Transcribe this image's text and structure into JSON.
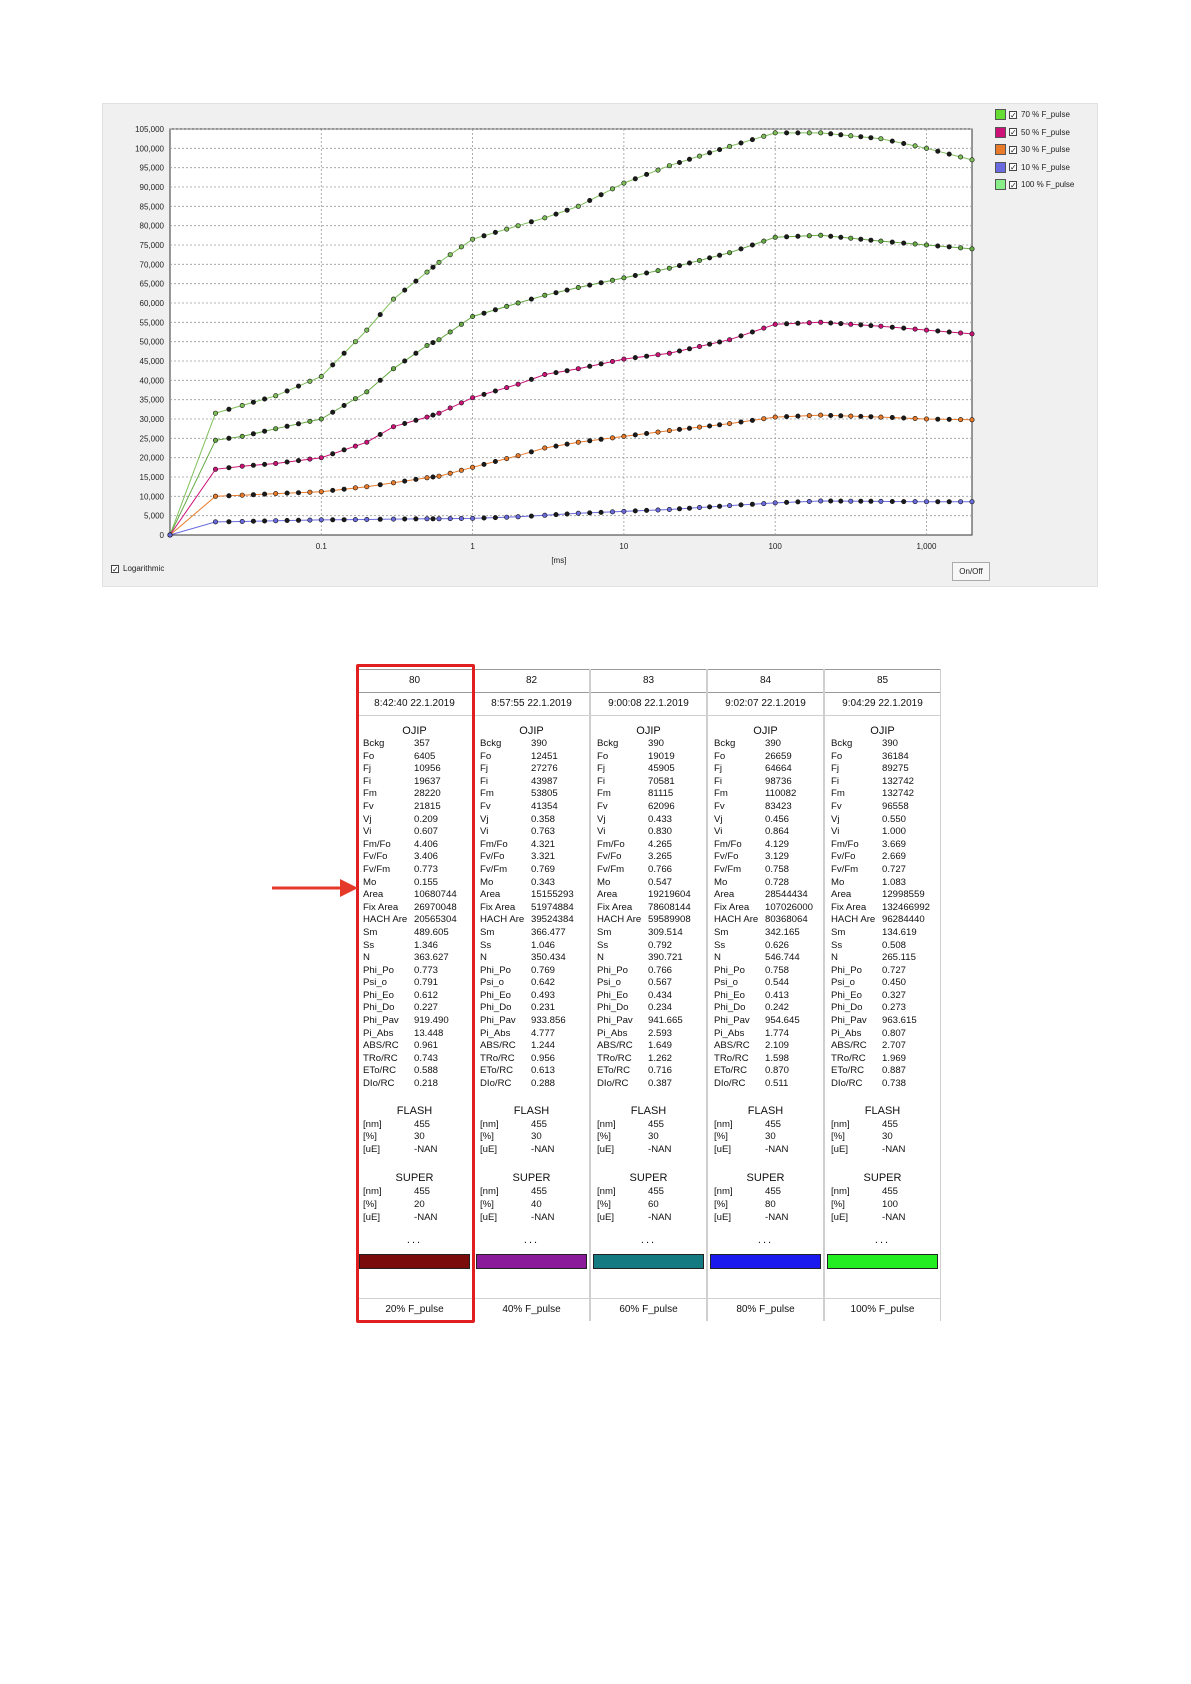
{
  "chart": {
    "xlabel": "[ms]",
    "y_ticks": [
      "0",
      "5,000",
      "10,000",
      "15,000",
      "20,000",
      "25,000",
      "30,000",
      "35,000",
      "40,000",
      "45,000",
      "50,000",
      "55,000",
      "60,000",
      "65,000",
      "70,000",
      "75,000",
      "80,000",
      "85,000",
      "90,000",
      "95,000",
      "100,000",
      "105,000"
    ],
    "x_ticks": [
      "0.1",
      "1",
      "10",
      "100",
      "1,000"
    ],
    "log_label": "Logarithmic",
    "log_checked": true,
    "onoff_label": "On/Off",
    "legend": [
      {
        "label": "70 % F_pulse",
        "color": "#66dd33"
      },
      {
        "label": "50 % F_pulse",
        "color": "#cc1177"
      },
      {
        "label": "30 % F_pulse",
        "color": "#e87a2a"
      },
      {
        "label": "10 % F_pulse",
        "color": "#6a6adf"
      },
      {
        "label": "100 % F_pulse",
        "color": "#88ee88"
      }
    ]
  },
  "chart_data": {
    "type": "scatter",
    "x_scale": "log",
    "xlabel": "[ms]",
    "xlim": [
      0.01,
      2000
    ],
    "ylim": [
      0,
      105000
    ],
    "grid": true,
    "legend_position": "right",
    "series": [
      {
        "name": "100 % F_pulse",
        "color": "#7fbf5a",
        "x": [
          0.01,
          0.02,
          0.03,
          0.05,
          0.1,
          0.2,
          0.3,
          0.5,
          0.6,
          1,
          2,
          3,
          5,
          10,
          20,
          50,
          100,
          200,
          500,
          1000,
          2000
        ],
        "y": [
          0,
          31500,
          33500,
          36000,
          41000,
          53000,
          61000,
          68000,
          70500,
          76500,
          80000,
          82000,
          85000,
          91000,
          95500,
          100500,
          104000,
          104000,
          102500,
          100000,
          97000
        ]
      },
      {
        "name": "70 % F_pulse",
        "color": "#66aa44",
        "x": [
          0.01,
          0.02,
          0.03,
          0.05,
          0.1,
          0.2,
          0.3,
          0.5,
          0.6,
          1,
          2,
          3,
          5,
          10,
          20,
          50,
          100,
          200,
          500,
          1000,
          2000
        ],
        "y": [
          0,
          24500,
          25500,
          27500,
          30000,
          37000,
          43000,
          49000,
          50500,
          56500,
          60000,
          62000,
          64000,
          66500,
          69000,
          73000,
          77000,
          77500,
          76000,
          75000,
          74000
        ]
      },
      {
        "name": "50 % F_pulse",
        "color": "#cc1177",
        "x": [
          0.01,
          0.02,
          0.03,
          0.05,
          0.1,
          0.2,
          0.3,
          0.5,
          0.6,
          1,
          2,
          3,
          5,
          10,
          20,
          50,
          100,
          200,
          500,
          1000,
          2000
        ],
        "y": [
          0,
          17000,
          17800,
          18500,
          20000,
          24000,
          28000,
          30500,
          31500,
          35500,
          39000,
          41500,
          43000,
          45500,
          47000,
          50500,
          54500,
          55000,
          54000,
          53000,
          52000
        ]
      },
      {
        "name": "30 % F_pulse",
        "color": "#e87a2a",
        "x": [
          0.01,
          0.02,
          0.03,
          0.05,
          0.1,
          0.2,
          0.3,
          0.5,
          0.6,
          1,
          2,
          3,
          5,
          10,
          20,
          50,
          100,
          200,
          500,
          1000,
          2000
        ],
        "y": [
          0,
          10000,
          10300,
          10700,
          11200,
          12500,
          13500,
          14800,
          15200,
          17500,
          20500,
          22500,
          24000,
          25500,
          27000,
          28800,
          30500,
          31000,
          30500,
          30000,
          29800
        ]
      },
      {
        "name": "10 % F_pulse",
        "color": "#6a6adf",
        "x": [
          0.01,
          0.02,
          0.03,
          0.05,
          0.1,
          0.2,
          0.3,
          0.5,
          0.6,
          1,
          2,
          3,
          5,
          10,
          20,
          50,
          100,
          200,
          500,
          1000,
          2000
        ],
        "y": [
          0,
          3400,
          3500,
          3700,
          3900,
          4000,
          4100,
          4200,
          4200,
          4300,
          4700,
          5100,
          5600,
          6100,
          6600,
          7600,
          8300,
          8800,
          8700,
          8600,
          8600
        ]
      }
    ]
  },
  "table": {
    "params": [
      "Bckg",
      "Fo",
      "Fj",
      "Fi",
      "Fm",
      "Fv",
      "Vj",
      "Vi",
      "Fm/Fo",
      "Fv/Fo",
      "Fv/Fm",
      "Mo",
      "Area",
      "Fix Area",
      "HACH Are",
      "Sm",
      "Ss",
      "N",
      "Phi_Po",
      "Psi_o",
      "Phi_Eo",
      "Phi_Do",
      "Phi_Pav",
      "Pi_Abs",
      "ABS/RC",
      "TRo/RC",
      "ETo/RC",
      "DIo/RC"
    ],
    "ojip_title": "OJIP",
    "flash_title": "FLASH",
    "super_title": "SUPER",
    "flash_params": [
      "[nm]",
      "[%]",
      "[uE]"
    ],
    "ellipsis": "...",
    "columns": [
      {
        "id": "80",
        "time": "8:42:40  22.1.2019",
        "values": [
          "357",
          "6405",
          "10956",
          "19637",
          "28220",
          "21815",
          "0.209",
          "0.607",
          "4.406",
          "3.406",
          "0.773",
          "0.155",
          "10680744",
          "26970048",
          "20565304",
          "489.605",
          "1.346",
          "363.627",
          "0.773",
          "0.791",
          "0.612",
          "0.227",
          "919.490",
          "13.448",
          "0.961",
          "0.743",
          "0.588",
          "0.218"
        ],
        "flash": [
          "455",
          "30",
          "-NAN"
        ],
        "super": [
          "455",
          "20",
          "-NAN"
        ],
        "color": "#7a0c0c",
        "pulse": "20% F_pulse"
      },
      {
        "id": "82",
        "time": "8:57:55  22.1.2019",
        "values": [
          "390",
          "12451",
          "27276",
          "43987",
          "53805",
          "41354",
          "0.358",
          "0.763",
          "4.321",
          "3.321",
          "0.769",
          "0.343",
          "15155293",
          "51974884",
          "39524384",
          "366.477",
          "1.046",
          "350.434",
          "0.769",
          "0.642",
          "0.493",
          "0.231",
          "933.856",
          "4.777",
          "1.244",
          "0.956",
          "0.613",
          "0.288"
        ],
        "flash": [
          "455",
          "30",
          "-NAN"
        ],
        "super": [
          "455",
          "40",
          "-NAN"
        ],
        "color": "#8b1a9a",
        "pulse": "40% F_pulse"
      },
      {
        "id": "83",
        "time": "9:00:08  22.1.2019",
        "values": [
          "390",
          "19019",
          "45905",
          "70581",
          "81115",
          "62096",
          "0.433",
          "0.830",
          "4.265",
          "3.265",
          "0.766",
          "0.547",
          "19219604",
          "78608144",
          "59589908",
          "309.514",
          "0.792",
          "390.721",
          "0.766",
          "0.567",
          "0.434",
          "0.234",
          "941.665",
          "2.593",
          "1.649",
          "1.262",
          "0.716",
          "0.387"
        ],
        "flash": [
          "455",
          "30",
          "-NAN"
        ],
        "super": [
          "455",
          "60",
          "-NAN"
        ],
        "color": "#137a82",
        "pulse": "60% F_pulse"
      },
      {
        "id": "84",
        "time": "9:02:07  22.1.2019",
        "values": [
          "390",
          "26659",
          "64664",
          "98736",
          "110082",
          "83423",
          "0.456",
          "0.864",
          "4.129",
          "3.129",
          "0.758",
          "0.728",
          "28544434",
          "107026000",
          "80368064",
          "342.165",
          "0.626",
          "546.744",
          "0.758",
          "0.544",
          "0.413",
          "0.242",
          "954.645",
          "1.774",
          "2.109",
          "1.598",
          "0.870",
          "0.511"
        ],
        "flash": [
          "455",
          "30",
          "-NAN"
        ],
        "super": [
          "455",
          "80",
          "-NAN"
        ],
        "color": "#1a1aee",
        "pulse": "80% F_pulse"
      },
      {
        "id": "85",
        "time": "9:04:29  22.1.2019",
        "values": [
          "390",
          "36184",
          "89275",
          "132742",
          "132742",
          "96558",
          "0.550",
          "1.000",
          "3.669",
          "2.669",
          "0.727",
          "1.083",
          "12998559",
          "132466992",
          "96284440",
          "134.619",
          "0.508",
          "265.115",
          "0.727",
          "0.450",
          "0.327",
          "0.273",
          "963.615",
          "0.807",
          "2.707",
          "1.969",
          "0.887",
          "0.738"
        ],
        "flash": [
          "455",
          "30",
          "-NAN"
        ],
        "super": [
          "455",
          "100",
          "-NAN"
        ],
        "color": "#22ee22",
        "pulse": "100% F_pulse"
      }
    ]
  }
}
